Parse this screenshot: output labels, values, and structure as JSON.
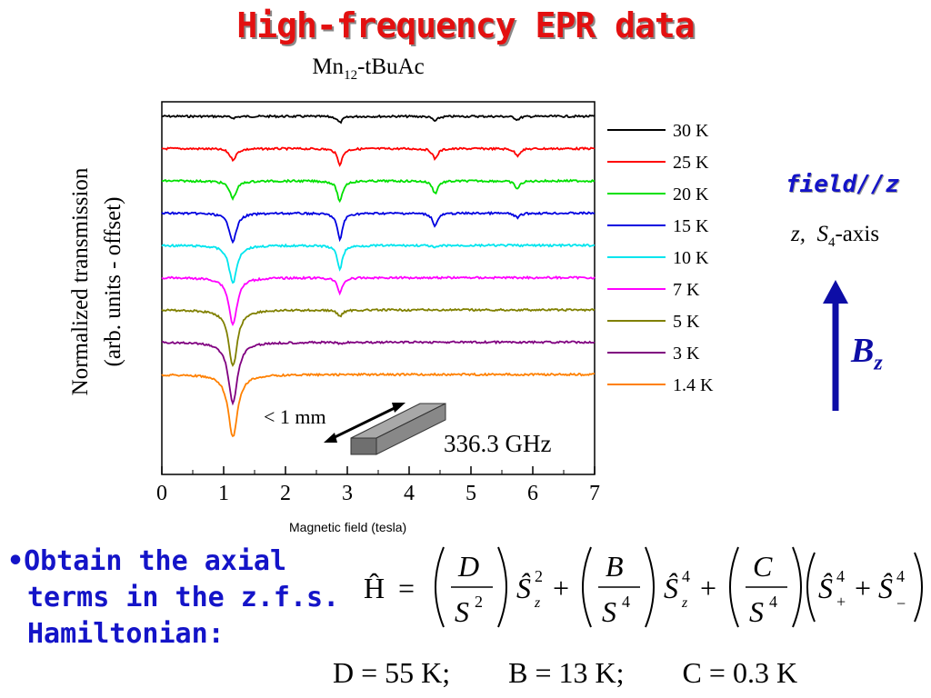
{
  "slide": {
    "title": "High-frequency EPR data",
    "field_label": "field//z",
    "axis_label_z": "z,",
    "axis_label_s": "S",
    "axis_label_s_sub": "4",
    "axis_label_suffix": "-axis",
    "b_label": "B",
    "b_label_sub": "z",
    "bullet_line1": "Obtain the axial",
    "bullet_line2": "terms in the z.f.s.",
    "bullet_line3": "Hamiltonian:",
    "hamiltonian_lhs": "Ĥ",
    "num_d": "D",
    "num_b": "B",
    "num_c": "C",
    "den": "S",
    "den_exp_2": "2",
    "den_exp_4": "4",
    "param_line": "D = 55 K;        B = 13 K;        C = 0.3 K",
    "colors": {
      "title": "#e31010",
      "bullet": "#1414c8",
      "arrow": "#0d0da6"
    }
  },
  "chart_data": {
    "type": "line",
    "title_main": "Mn",
    "title_sub": "12",
    "title_suffix": "-tBuAc",
    "xlabel": "Magnetic field (tesla)",
    "ylabel_line1": "Normalized transmission",
    "ylabel_line2": "(arb. units - offset)",
    "xlim": [
      0,
      7
    ],
    "x_ticks": [
      "0",
      "1",
      "2",
      "3",
      "4",
      "5",
      "6",
      "7"
    ],
    "frequency_label": "336.3 GHz",
    "sample_size_label": "< 1 mm",
    "resonance_fields": [
      1.15,
      2.88,
      4.42,
      5.75
    ],
    "series": [
      {
        "name": "30 K",
        "color": "#000000",
        "offset": 0,
        "dips": [
          0.2,
          0.8,
          0.6,
          0.4
        ]
      },
      {
        "name": "25 K",
        "color": "#ff0000",
        "offset": -1,
        "dips": [
          1.4,
          2.0,
          1.3,
          0.9
        ]
      },
      {
        "name": "20 K",
        "color": "#00e000",
        "offset": -2,
        "dips": [
          2.2,
          2.7,
          1.6,
          1.0
        ]
      },
      {
        "name": "15 K",
        "color": "#0000e0",
        "offset": -3,
        "dips": [
          3.6,
          3.4,
          1.6,
          0.6
        ]
      },
      {
        "name": "10 K",
        "color": "#00e5ee",
        "offset": -4,
        "dips": [
          4.8,
          3.0,
          0.3,
          0.0
        ]
      },
      {
        "name": "7 K",
        "color": "#ff00ff",
        "offset": -5,
        "dips": [
          6.0,
          1.9,
          0.0,
          0.0
        ]
      },
      {
        "name": "5 K",
        "color": "#808000",
        "offset": -6,
        "dips": [
          7.2,
          0.8,
          0.0,
          0.0
        ]
      },
      {
        "name": "3 K",
        "color": "#800080",
        "offset": -7,
        "dips": [
          7.8,
          0.2,
          0.0,
          0.0
        ]
      },
      {
        "name": "1.4 K",
        "color": "#ff8000",
        "offset": -8,
        "dips": [
          8.0,
          0.0,
          0.0,
          0.0
        ]
      }
    ]
  }
}
